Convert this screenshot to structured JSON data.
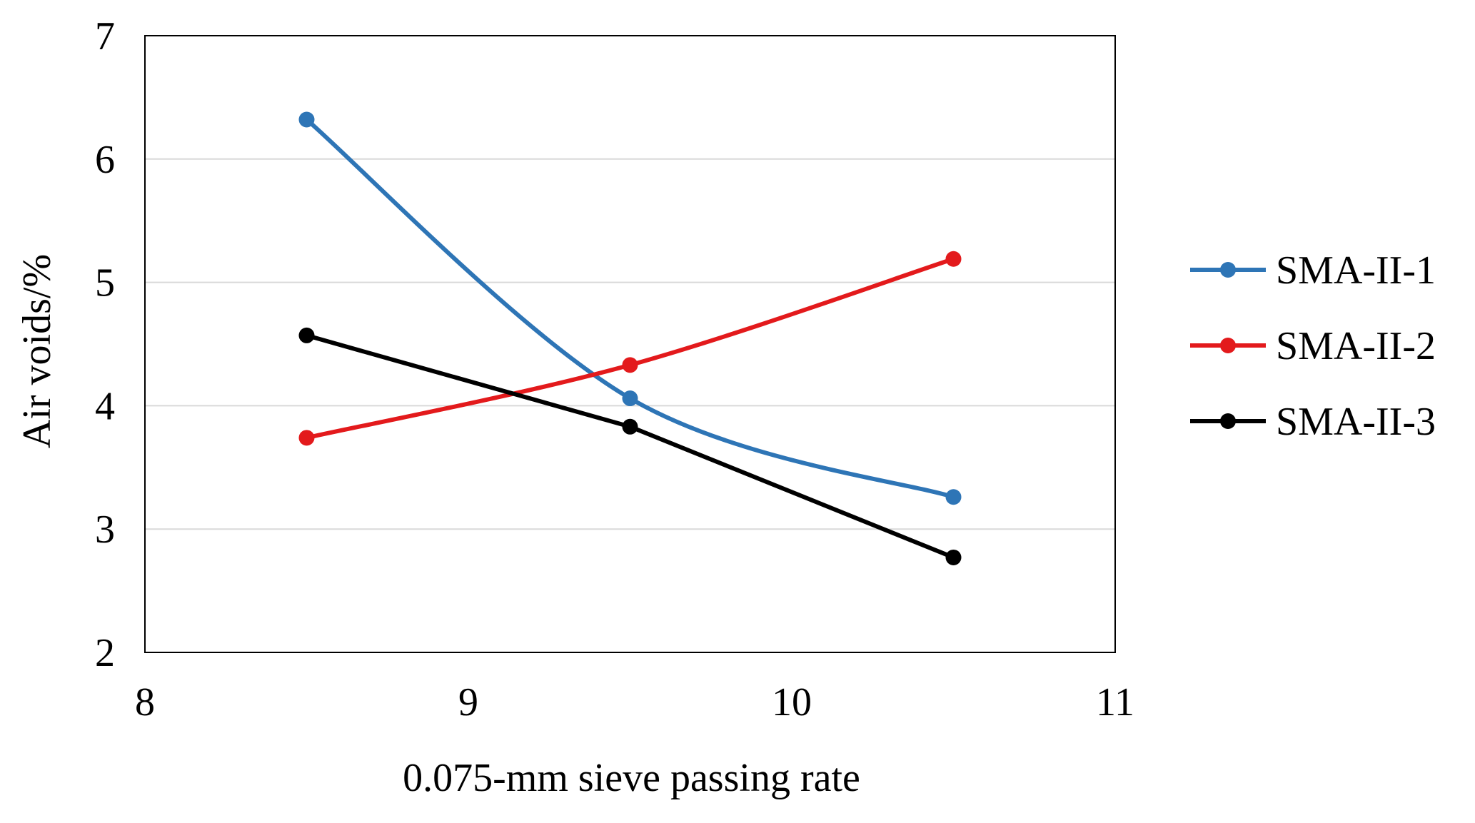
{
  "chart_data": {
    "type": "line",
    "title": "",
    "xlabel": "0.075-mm  sieve passing rate",
    "ylabel": "Air voids/%",
    "xlim": [
      8,
      11
    ],
    "ylim": [
      2,
      7
    ],
    "x_ticks": [
      8,
      9,
      10,
      11
    ],
    "y_ticks": [
      2,
      3,
      4,
      5,
      6,
      7
    ],
    "x_tick_labels": [
      "8",
      "9",
      "10",
      "11"
    ],
    "y_tick_labels": [
      "2",
      "3",
      "4",
      "5",
      "6",
      "7"
    ],
    "grid": "horizontal",
    "legend_position": "right",
    "series": [
      {
        "name": "SMA-II-1",
        "color": "#2e75b6",
        "x": [
          8.5,
          9.5,
          10.5
        ],
        "values": [
          6.32,
          4.06,
          3.26
        ],
        "smooth": true
      },
      {
        "name": "SMA-II-2",
        "color": "#e31a1c",
        "x": [
          8.5,
          9.5,
          10.5
        ],
        "values": [
          3.74,
          4.33,
          5.19
        ],
        "smooth": true
      },
      {
        "name": "SMA-II-3",
        "color": "#000000",
        "x": [
          8.5,
          9.5,
          10.5
        ],
        "values": [
          4.57,
          3.83,
          2.77
        ],
        "smooth": false
      }
    ]
  }
}
